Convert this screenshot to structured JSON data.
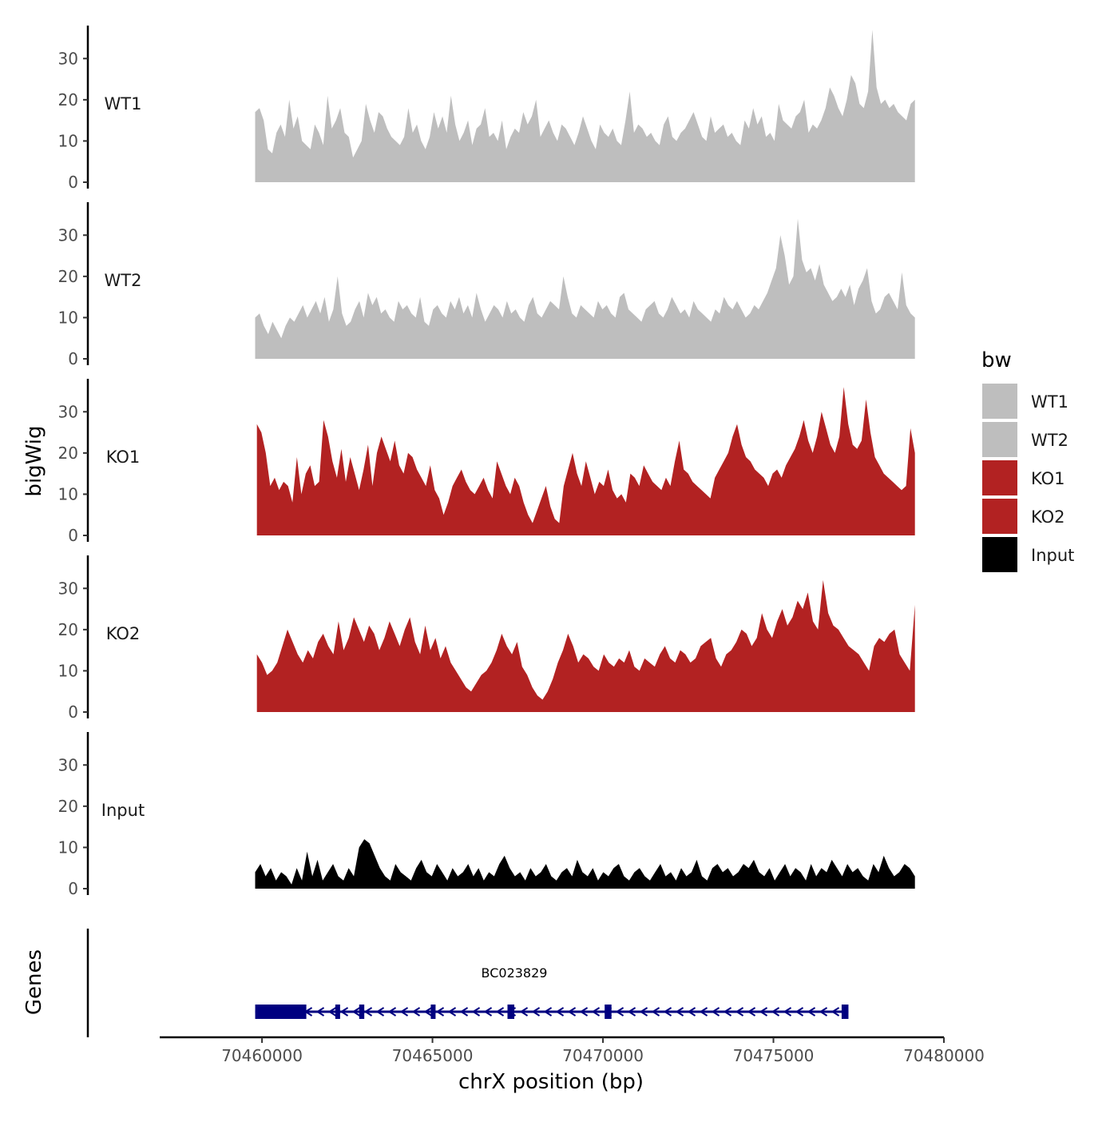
{
  "chart_data": {
    "type": "area",
    "title": "",
    "xlabel": "chrX position (bp)",
    "ylabel": "bigWig",
    "gene_panel_label": "Genes",
    "xlim": [
      70457000,
      70480000
    ],
    "x_ticks": [
      70460000,
      70465000,
      70470000,
      70475000,
      70480000
    ],
    "x_tick_labels": [
      "70460000",
      "70465000",
      "70470000",
      "70475000",
      "70480000"
    ],
    "ylim": [
      0,
      38
    ],
    "y_ticks": [
      0,
      10,
      20,
      30
    ],
    "y_tick_labels": [
      "0",
      "10",
      "20",
      "30"
    ],
    "grid": false,
    "legend": {
      "title": "bw",
      "position": "right",
      "entries": [
        {
          "label": "WT1",
          "color": "#bebebe"
        },
        {
          "label": "WT2",
          "color": "#bebebe"
        },
        {
          "label": "KO1",
          "color": "#b22222"
        },
        {
          "label": "KO2",
          "color": "#b22222"
        },
        {
          "label": "Input",
          "color": "#000000"
        }
      ]
    },
    "series": [
      {
        "name": "WT1",
        "color": "#bebebe",
        "x_start": 70459800,
        "x_end": 70479150,
        "values": [
          17,
          18,
          15,
          8,
          7,
          12,
          14,
          11,
          20,
          13,
          16,
          10,
          9,
          8,
          14,
          12,
          9,
          21,
          13,
          15,
          18,
          12,
          11,
          6,
          8,
          10,
          19,
          15,
          12,
          17,
          16,
          13,
          11,
          10,
          9,
          11,
          18,
          12,
          14,
          10,
          8,
          11,
          17,
          13,
          16,
          12,
          21,
          14,
          10,
          12,
          15,
          9,
          13,
          14,
          18,
          11,
          12,
          10,
          15,
          8,
          11,
          13,
          12,
          17,
          14,
          16,
          20,
          11,
          13,
          15,
          12,
          10,
          14,
          13,
          11,
          9,
          12,
          16,
          13,
          10,
          8,
          14,
          12,
          11,
          13,
          10,
          9,
          15,
          22,
          12,
          14,
          13,
          11,
          12,
          10,
          9,
          14,
          16,
          11,
          10,
          12,
          13,
          15,
          17,
          14,
          11,
          10,
          16,
          12,
          13,
          14,
          11,
          12,
          10,
          9,
          15,
          13,
          18,
          14,
          16,
          11,
          12,
          10,
          19,
          15,
          14,
          13,
          16,
          17,
          20,
          12,
          14,
          13,
          15,
          18,
          23,
          21,
          18,
          16,
          20,
          26,
          24,
          19,
          18,
          22,
          37,
          23,
          19,
          20,
          18,
          19,
          17,
          16,
          15,
          19,
          20
        ]
      },
      {
        "name": "WT2",
        "color": "#bebebe",
        "x_start": 70459800,
        "x_end": 70479150,
        "values": [
          10,
          11,
          8,
          6,
          9,
          7,
          5,
          8,
          10,
          9,
          11,
          13,
          10,
          12,
          14,
          11,
          15,
          9,
          12,
          20,
          11,
          8,
          9,
          12,
          14,
          10,
          16,
          13,
          15,
          11,
          12,
          10,
          9,
          14,
          12,
          13,
          11,
          10,
          15,
          9,
          8,
          12,
          13,
          11,
          10,
          14,
          12,
          15,
          11,
          13,
          10,
          16,
          12,
          9,
          11,
          13,
          12,
          10,
          14,
          11,
          12,
          10,
          9,
          13,
          15,
          11,
          10,
          12,
          14,
          13,
          12,
          20,
          15,
          11,
          10,
          13,
          12,
          11,
          10,
          14,
          12,
          13,
          11,
          10,
          15,
          16,
          12,
          11,
          10,
          9,
          12,
          13,
          14,
          11,
          10,
          12,
          15,
          13,
          11,
          12,
          10,
          14,
          12,
          11,
          10,
          9,
          12,
          11,
          15,
          13,
          12,
          14,
          12,
          10,
          11,
          13,
          12,
          14,
          16,
          19,
          22,
          30,
          25,
          18,
          20,
          34,
          24,
          21,
          22,
          19,
          23,
          18,
          16,
          14,
          15,
          17,
          15,
          18,
          13,
          17,
          19,
          22,
          14,
          11,
          12,
          15,
          16,
          14,
          12,
          21,
          13,
          11,
          10
        ]
      },
      {
        "name": "KO1",
        "color": "#b22222",
        "x_start": 70459850,
        "x_end": 70479150,
        "values": [
          27,
          25,
          20,
          12,
          14,
          11,
          13,
          12,
          8,
          19,
          10,
          15,
          17,
          12,
          13,
          28,
          24,
          18,
          14,
          21,
          13,
          19,
          15,
          11,
          16,
          22,
          12,
          20,
          24,
          21,
          18,
          23,
          17,
          15,
          20,
          19,
          16,
          14,
          12,
          17,
          11,
          9,
          5,
          8,
          12,
          14,
          16,
          13,
          11,
          10,
          12,
          14,
          11,
          9,
          18,
          15,
          12,
          10,
          14,
          12,
          8,
          5,
          3,
          6,
          9,
          12,
          7,
          4,
          3,
          12,
          16,
          20,
          15,
          12,
          18,
          14,
          10,
          13,
          12,
          16,
          11,
          9,
          10,
          8,
          15,
          14,
          12,
          17,
          15,
          13,
          12,
          11,
          14,
          12,
          18,
          23,
          16,
          15,
          13,
          12,
          11,
          10,
          9,
          14,
          16,
          18,
          20,
          24,
          27,
          22,
          19,
          18,
          16,
          15,
          14,
          12,
          15,
          16,
          14,
          17,
          19,
          21,
          24,
          28,
          23,
          20,
          24,
          30,
          26,
          22,
          20,
          24,
          36,
          27,
          22,
          21,
          23,
          33,
          25,
          19,
          17,
          15,
          14,
          13,
          12,
          11,
          12,
          26,
          20
        ]
      },
      {
        "name": "KO2",
        "color": "#b22222",
        "x_start": 70459850,
        "x_end": 70479150,
        "values": [
          14,
          12,
          9,
          10,
          12,
          16,
          20,
          17,
          14,
          12,
          15,
          13,
          17,
          19,
          16,
          14,
          22,
          15,
          18,
          23,
          20,
          17,
          21,
          19,
          15,
          18,
          22,
          19,
          16,
          20,
          23,
          17,
          14,
          21,
          15,
          18,
          13,
          16,
          12,
          10,
          8,
          6,
          5,
          7,
          9,
          10,
          12,
          15,
          19,
          16,
          14,
          17,
          11,
          9,
          6,
          4,
          3,
          5,
          8,
          12,
          15,
          19,
          16,
          12,
          14,
          13,
          11,
          10,
          14,
          12,
          11,
          13,
          12,
          15,
          11,
          10,
          13,
          12,
          11,
          14,
          16,
          13,
          12,
          15,
          14,
          12,
          13,
          16,
          17,
          18,
          13,
          11,
          14,
          15,
          17,
          20,
          19,
          16,
          18,
          24,
          20,
          18,
          22,
          25,
          21,
          23,
          27,
          25,
          29,
          22,
          20,
          32,
          24,
          21,
          20,
          18,
          16,
          15,
          14,
          12,
          10,
          16,
          18,
          17,
          19,
          20,
          14,
          12,
          10,
          26
        ]
      },
      {
        "name": "Input",
        "color": "#000000",
        "x_start": 70459800,
        "x_end": 70479150,
        "values": [
          4,
          6,
          3,
          5,
          2,
          4,
          3,
          1,
          5,
          2,
          9,
          3,
          7,
          2,
          4,
          6,
          3,
          2,
          5,
          3,
          10,
          12,
          11,
          8,
          5,
          3,
          2,
          6,
          4,
          3,
          2,
          5,
          7,
          4,
          3,
          6,
          4,
          2,
          5,
          3,
          4,
          6,
          3,
          5,
          2,
          4,
          3,
          6,
          8,
          5,
          3,
          4,
          2,
          5,
          3,
          4,
          6,
          3,
          2,
          4,
          5,
          3,
          7,
          4,
          3,
          5,
          2,
          4,
          3,
          5,
          6,
          3,
          2,
          4,
          5,
          3,
          2,
          4,
          6,
          3,
          4,
          2,
          5,
          3,
          4,
          7,
          3,
          2,
          5,
          6,
          4,
          5,
          3,
          4,
          6,
          5,
          7,
          4,
          3,
          5,
          2,
          4,
          6,
          3,
          5,
          4,
          2,
          6,
          3,
          5,
          4,
          7,
          5,
          3,
          6,
          4,
          5,
          3,
          2,
          6,
          4,
          8,
          5,
          3,
          4,
          6,
          5,
          3
        ]
      }
    ],
    "genes": [
      {
        "name": "BC023829",
        "strand": "-",
        "start": 70459800,
        "end": 70477200,
        "exons": [
          [
            70459800,
            70461300
          ],
          [
            70462150,
            70462250
          ],
          [
            70462850,
            70463000
          ],
          [
            70464950,
            70465050
          ],
          [
            70467200,
            70467400
          ],
          [
            70470050,
            70470250
          ],
          [
            70477000,
            70477200
          ]
        ],
        "color": "#000080"
      }
    ]
  }
}
